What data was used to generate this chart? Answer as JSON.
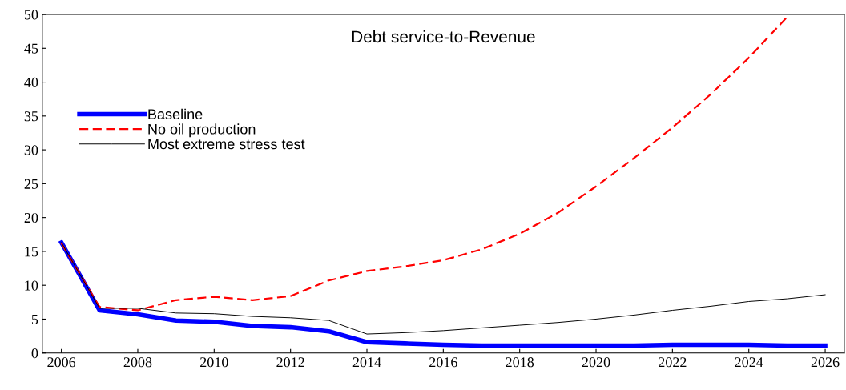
{
  "chart_data": {
    "type": "line",
    "title": "Debt service-to-Revenue",
    "x": [
      2006,
      2007,
      2008,
      2009,
      2010,
      2011,
      2012,
      2013,
      2014,
      2015,
      2016,
      2017,
      2018,
      2019,
      2020,
      2021,
      2022,
      2023,
      2024,
      2025,
      2026
    ],
    "series": [
      {
        "name": "Baseline",
        "color": "#0000ff",
        "line_style": "solid",
        "values": [
          16.3,
          6.3,
          5.7,
          4.8,
          4.6,
          4.0,
          3.8,
          3.2,
          1.6,
          1.4,
          1.2,
          1.1,
          1.1,
          1.1,
          1.1,
          1.1,
          1.2,
          1.2,
          1.2,
          1.1,
          1.1
        ]
      },
      {
        "name": "No oil production",
        "color": "#ff0000",
        "line_style": "dashed",
        "values": [
          16.2,
          6.8,
          6.3,
          7.8,
          8.3,
          7.8,
          8.4,
          10.7,
          12.1,
          12.8,
          13.7,
          15.3,
          17.6,
          20.7,
          24.6,
          28.8,
          33.3,
          38.2,
          43.6,
          49.6,
          null
        ]
      },
      {
        "name": "Most extreme stress test",
        "color": "#000000",
        "line_style": "solid",
        "values": [
          16.3,
          6.6,
          6.6,
          5.9,
          5.8,
          5.4,
          5.2,
          4.8,
          2.8,
          3.0,
          3.3,
          3.7,
          4.1,
          4.5,
          5.0,
          5.6,
          6.3,
          6.9,
          7.6,
          8.0,
          8.6
        ]
      }
    ],
    "xlim": [
      2005.5,
      2026.5
    ],
    "xticks": [
      2006,
      2008,
      2010,
      2012,
      2014,
      2016,
      2018,
      2020,
      2022,
      2024,
      2026
    ],
    "ylim": [
      0,
      50
    ],
    "yticks": [
      0,
      5,
      10,
      15,
      20,
      25,
      30,
      35,
      40,
      45,
      50
    ],
    "grid": false,
    "legend": "top left",
    "marker": "none"
  }
}
